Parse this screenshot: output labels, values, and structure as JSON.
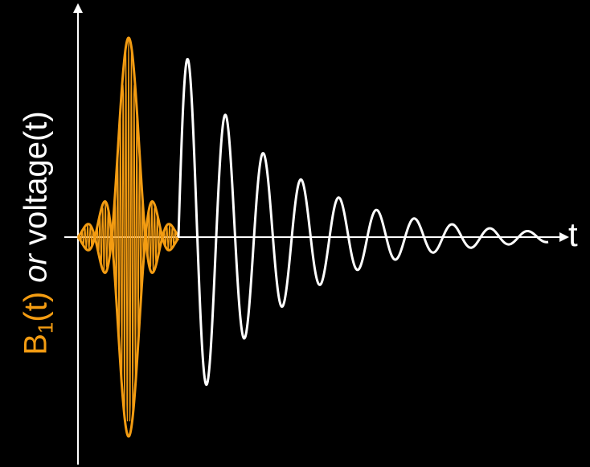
{
  "diagram": {
    "y_axis_label": {
      "b1_symbol": "B",
      "b1_subscript": "1",
      "b1_argument": "(t)",
      "connector": "or",
      "voltage_text": "voltage(t)"
    },
    "x_axis_label": "t",
    "colors": {
      "background": "#000000",
      "axes": "#ffffff",
      "rf_pulse": "#f39c12",
      "fid_signal": "#ffffff"
    },
    "curves": [
      {
        "name": "rf-pulse",
        "description_shape": "sinc-modulated carrier",
        "color": "#f39c12"
      },
      {
        "name": "free-induction-decay",
        "description_shape": "exponentially decaying oscillation",
        "color": "#ffffff"
      }
    ]
  }
}
